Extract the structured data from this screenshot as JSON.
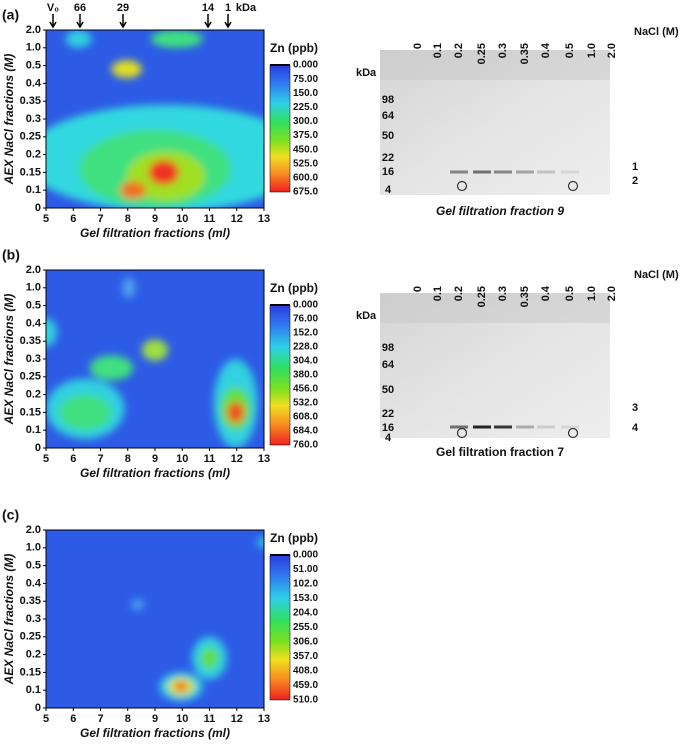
{
  "panels": [
    {
      "label": "(a)",
      "markers": [
        "V₀",
        "66",
        "29",
        "14",
        "1",
        "kDa"
      ],
      "x_label": "Gel filtration fractions (ml)",
      "y_label": "AEX NaCl fractions (M)",
      "x_ticks": [
        "5",
        "6",
        "7",
        "8",
        "9",
        "10",
        "11",
        "12",
        "13"
      ],
      "y_ticks": [
        "0",
        "0.1",
        "0.15",
        "0.2",
        "0.25",
        "0.3",
        "0.35",
        "0.4",
        "0.5",
        "1.0",
        "2.0"
      ],
      "colorbar_title": "Zn (ppb)",
      "colorbar_ticks": [
        "0.000",
        "75.00",
        "150.0",
        "225.0",
        "300.0",
        "375.0",
        "450.0",
        "525.0",
        "600.0",
        "675.0"
      ],
      "gel": {
        "lanes": [
          "0",
          "0.1",
          "0.2",
          "0.25",
          "0.3",
          "0.35",
          "0.4",
          "0.5",
          "1.0",
          "2.0"
        ],
        "lane_unit": "NaCl (M)",
        "mw_unit": "kDa",
        "mw": [
          "98",
          "64",
          "50",
          "22",
          "16",
          "4"
        ],
        "bands": [
          "1",
          "2"
        ],
        "caption": "Gel filtration fraction 9"
      }
    },
    {
      "label": "(b)",
      "x_label": "Gel filtration fractions (ml)",
      "y_label": "AEX NaCl fractions (M)",
      "x_ticks": [
        "5",
        "6",
        "7",
        "8",
        "9",
        "10",
        "11",
        "12",
        "13"
      ],
      "y_ticks": [
        "0",
        "0.1",
        "0.15",
        "0.2",
        "0.25",
        "0.3",
        "0.35",
        "0.4",
        "0.5",
        "1.0",
        "2.0"
      ],
      "colorbar_title": "Zn (ppb)",
      "colorbar_ticks": [
        "0.000",
        "76.00",
        "152.0",
        "228.0",
        "304.0",
        "380.0",
        "456.0",
        "532.0",
        "608.0",
        "684.0",
        "760.0"
      ],
      "gel": {
        "lanes": [
          "0",
          "0.1",
          "0.2",
          "0.25",
          "0.3",
          "0.35",
          "0.4",
          "0.5",
          "1.0",
          "2.0"
        ],
        "lane_unit": "NaCl (M)",
        "mw_unit": "kDa",
        "mw": [
          "98",
          "64",
          "50",
          "22",
          "16",
          "4"
        ],
        "bands": [
          "3",
          "4"
        ],
        "caption": "Gel filtration fraction 7"
      }
    },
    {
      "label": "(c)",
      "x_label": "Gel filtration fractions (ml)",
      "y_label": "AEX NaCl fractions (M)",
      "x_ticks": [
        "5",
        "6",
        "7",
        "8",
        "9",
        "10",
        "11",
        "12",
        "13"
      ],
      "y_ticks": [
        "0",
        "0.1",
        "0.15",
        "0.2",
        "0.25",
        "0.3",
        "0.35",
        "0.4",
        "0.5",
        "1.0",
        "2.0"
      ],
      "colorbar_title": "Zn (ppb)",
      "colorbar_ticks": [
        "0.000",
        "51.00",
        "102.0",
        "153.0",
        "204.0",
        "255.0",
        "306.0",
        "357.0",
        "408.0",
        "459.0",
        "510.0"
      ]
    }
  ]
}
